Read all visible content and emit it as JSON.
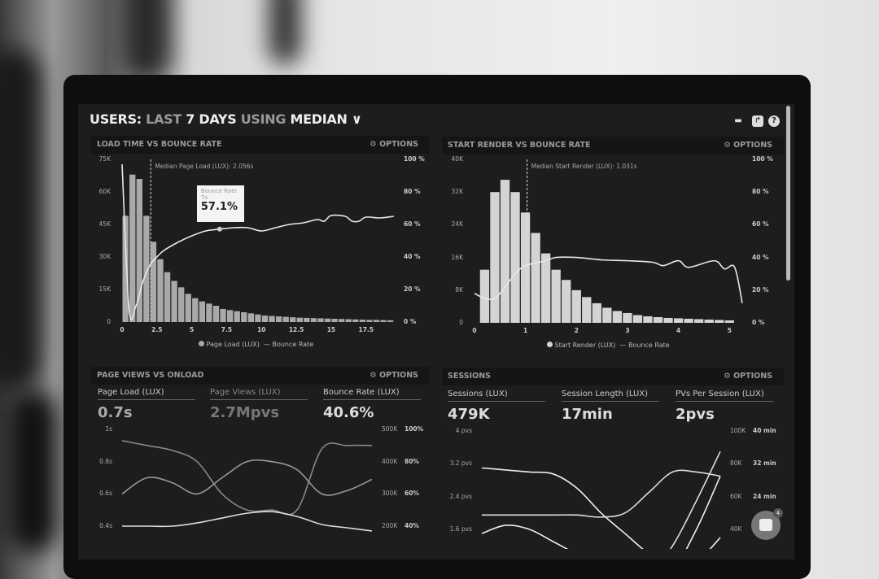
{
  "header": {
    "title_a": "USERS:",
    "title_b": "LAST",
    "title_c": "7 DAYS",
    "title_d": "USING",
    "title_e": "MEDIAN",
    "icons": [
      "monitor-icon",
      "share-icon",
      "help-icon"
    ]
  },
  "panels": {
    "load_time": {
      "title": "LOAD TIME VS BOUNCE RATE",
      "options": "OPTIONS"
    },
    "start_render": {
      "title": "START RENDER VS BOUNCE RATE",
      "options": "OPTIONS"
    },
    "page_views": {
      "title": "PAGE VIEWS VS ONLOAD",
      "options": "OPTIONS",
      "kpis": [
        {
          "label": "Page Load (LUX)",
          "value": "0.7s"
        },
        {
          "label": "Page Views (LUX)",
          "value": "2.7Mpvs"
        },
        {
          "label": "Bounce Rate (LUX)",
          "value": "40.6%"
        }
      ]
    },
    "sessions": {
      "title": "SESSIONS",
      "options": "OPTIONS",
      "kpis": [
        {
          "label": "Sessions (LUX)",
          "value": "479K"
        },
        {
          "label": "Session Length (LUX)",
          "value": "17min"
        },
        {
          "label": "PVs Per Session (LUX)",
          "value": "2pvs"
        }
      ]
    }
  },
  "chat": {
    "badge": "4"
  },
  "chart_data": [
    {
      "type": "bar",
      "title": "LOAD TIME VS BOUNCE RATE",
      "x_ticks": [
        "0",
        "2.5",
        "5",
        "7.5",
        "10",
        "12.5",
        "15",
        "17.5"
      ],
      "y_ticks": [
        "0",
        "15K",
        "30K",
        "45K",
        "60K",
        "75K"
      ],
      "y2_ticks": [
        "0 %",
        "20 %",
        "40 %",
        "60 %",
        "80 %",
        "100 %"
      ],
      "ylim": [
        0,
        75000
      ],
      "y2lim": [
        0,
        100
      ],
      "xlim": [
        0,
        19.5
      ],
      "annotation": "Median Page Load (LUX): 2.056s",
      "median_x": 2.056,
      "tooltip": {
        "label": "Bounce Rate",
        "x": "7s",
        "value": "57.1%",
        "at": 7
      },
      "legend": [
        "Page Load (LUX)",
        "Bounce Rate"
      ],
      "bar_width": 0.5,
      "bars": [
        49000,
        68000,
        66000,
        49000,
        37000,
        29000,
        23000,
        19000,
        16000,
        13000,
        11000,
        9500,
        8500,
        7500,
        6000,
        5500,
        5000,
        4500,
        4000,
        3500,
        3000,
        2800,
        2600,
        2400,
        2200,
        2000,
        1900,
        1800,
        1700,
        1600,
        1500,
        1400,
        1300,
        1200,
        1100,
        1000,
        1000,
        900,
        800
      ],
      "line": [
        [
          0,
          97
        ],
        [
          0.5,
          8
        ],
        [
          1,
          10
        ],
        [
          1.5,
          25
        ],
        [
          2,
          35
        ],
        [
          2.5,
          40
        ],
        [
          3,
          44
        ],
        [
          4,
          49
        ],
        [
          5,
          53
        ],
        [
          6,
          56
        ],
        [
          7,
          57.1
        ],
        [
          8,
          58
        ],
        [
          9,
          58
        ],
        [
          10,
          56
        ],
        [
          11,
          58
        ],
        [
          12,
          60
        ],
        [
          13,
          61
        ],
        [
          14,
          63
        ],
        [
          14.5,
          62
        ],
        [
          15,
          65.5
        ],
        [
          16,
          65
        ],
        [
          16.5,
          62
        ],
        [
          17,
          62
        ],
        [
          17.5,
          64.5
        ],
        [
          18.5,
          64
        ],
        [
          19.5,
          65
        ]
      ]
    },
    {
      "type": "bar",
      "title": "START RENDER VS BOUNCE RATE",
      "x_ticks": [
        "0",
        "1",
        "2",
        "3",
        "4",
        "5"
      ],
      "y_ticks": [
        "0",
        "8K",
        "16K",
        "24K",
        "32K",
        "40K"
      ],
      "y2_ticks": [
        "0 %",
        "20 %",
        "40 %",
        "60 %",
        "80 %",
        "100 %"
      ],
      "ylim": [
        0,
        40000
      ],
      "y2lim": [
        0,
        100
      ],
      "xlim": [
        0,
        5.25
      ],
      "annotation": "Median Start Render (LUX): 1.031s",
      "median_x": 1.031,
      "legend": [
        "Start Render (LUX)",
        "Bounce Rate"
      ],
      "bar_width": 0.2,
      "bars": [
        13000,
        32000,
        35000,
        32000,
        27000,
        22000,
        17000,
        13000,
        10500,
        8000,
        6300,
        4800,
        3700,
        2900,
        2400,
        1900,
        1600,
        1400,
        1200,
        1100,
        1000,
        900,
        800,
        700,
        600
      ],
      "line": [
        [
          0,
          18
        ],
        [
          0.2,
          15
        ],
        [
          0.4,
          15
        ],
        [
          0.6,
          22
        ],
        [
          0.8,
          30
        ],
        [
          1,
          35
        ],
        [
          1.4,
          38
        ],
        [
          1.6,
          40
        ],
        [
          2,
          40
        ],
        [
          2.5,
          38.5
        ],
        [
          3,
          38
        ],
        [
          3.5,
          37
        ],
        [
          3.7,
          35
        ],
        [
          4,
          38
        ],
        [
          4.2,
          34
        ],
        [
          4.7,
          38
        ],
        [
          4.9,
          33
        ],
        [
          5.1,
          34
        ],
        [
          5.25,
          12
        ]
      ]
    },
    {
      "type": "line",
      "title": "PAGE VIEWS VS ONLOAD",
      "y_ticks": [
        "0.4s",
        "0.6s",
        "0.8s",
        "1s"
      ],
      "ylim": [
        0.4,
        1
      ],
      "y2_ticks": [
        "200K",
        "300K",
        "400K",
        "500K"
      ],
      "y3_ticks": [
        "40%",
        "60%",
        "80%",
        "100%"
      ],
      "series": [
        {
          "values": [
            0.93,
            0.9,
            0.87,
            0.8,
            0.6,
            0.5,
            0.5,
            0.5,
            0.88,
            0.9,
            0.9
          ]
        },
        {
          "values": [
            0.6,
            0.7,
            0.67,
            0.6,
            0.7,
            0.8,
            0.8,
            0.75,
            0.6,
            0.62,
            0.69
          ]
        },
        {
          "values": [
            0.4,
            0.4,
            0.4,
            0.42,
            0.45,
            0.48,
            0.49,
            0.46,
            0.41,
            0.39,
            0.37
          ]
        }
      ]
    },
    {
      "type": "line",
      "title": "SESSIONS",
      "y_ticks": [
        "1.6 pvs",
        "2.4 pvs",
        "3.2 pvs",
        "4 pvs"
      ],
      "ylim": [
        1.6,
        4
      ],
      "y2_ticks": [
        "40K",
        "60K",
        "80K",
        "100K"
      ],
      "y3_ticks": [
        "24 min",
        "32 min",
        "40 min"
      ],
      "series": [
        {
          "values": [
            3.1,
            3.05,
            3.0,
            2.95,
            2.6,
            2.0,
            1.5,
            1.0,
            0.6,
            0.8,
            1.4
          ]
        },
        {
          "values": [
            1.95,
            1.95,
            1.95,
            1.95,
            1.95,
            1.9,
            2.0,
            2.5,
            3.0,
            3.0,
            2.9
          ]
        },
        {
          "values": [
            1.5,
            1.7,
            1.6,
            1.3,
            1.0,
            0.8,
            0.6,
            0.4,
            0.6,
            1.6,
            2.9
          ]
        },
        {
          "values": [
            null,
            null,
            null,
            null,
            null,
            null,
            null,
            0.5,
            1.2,
            2.3,
            3.5
          ]
        }
      ]
    }
  ]
}
